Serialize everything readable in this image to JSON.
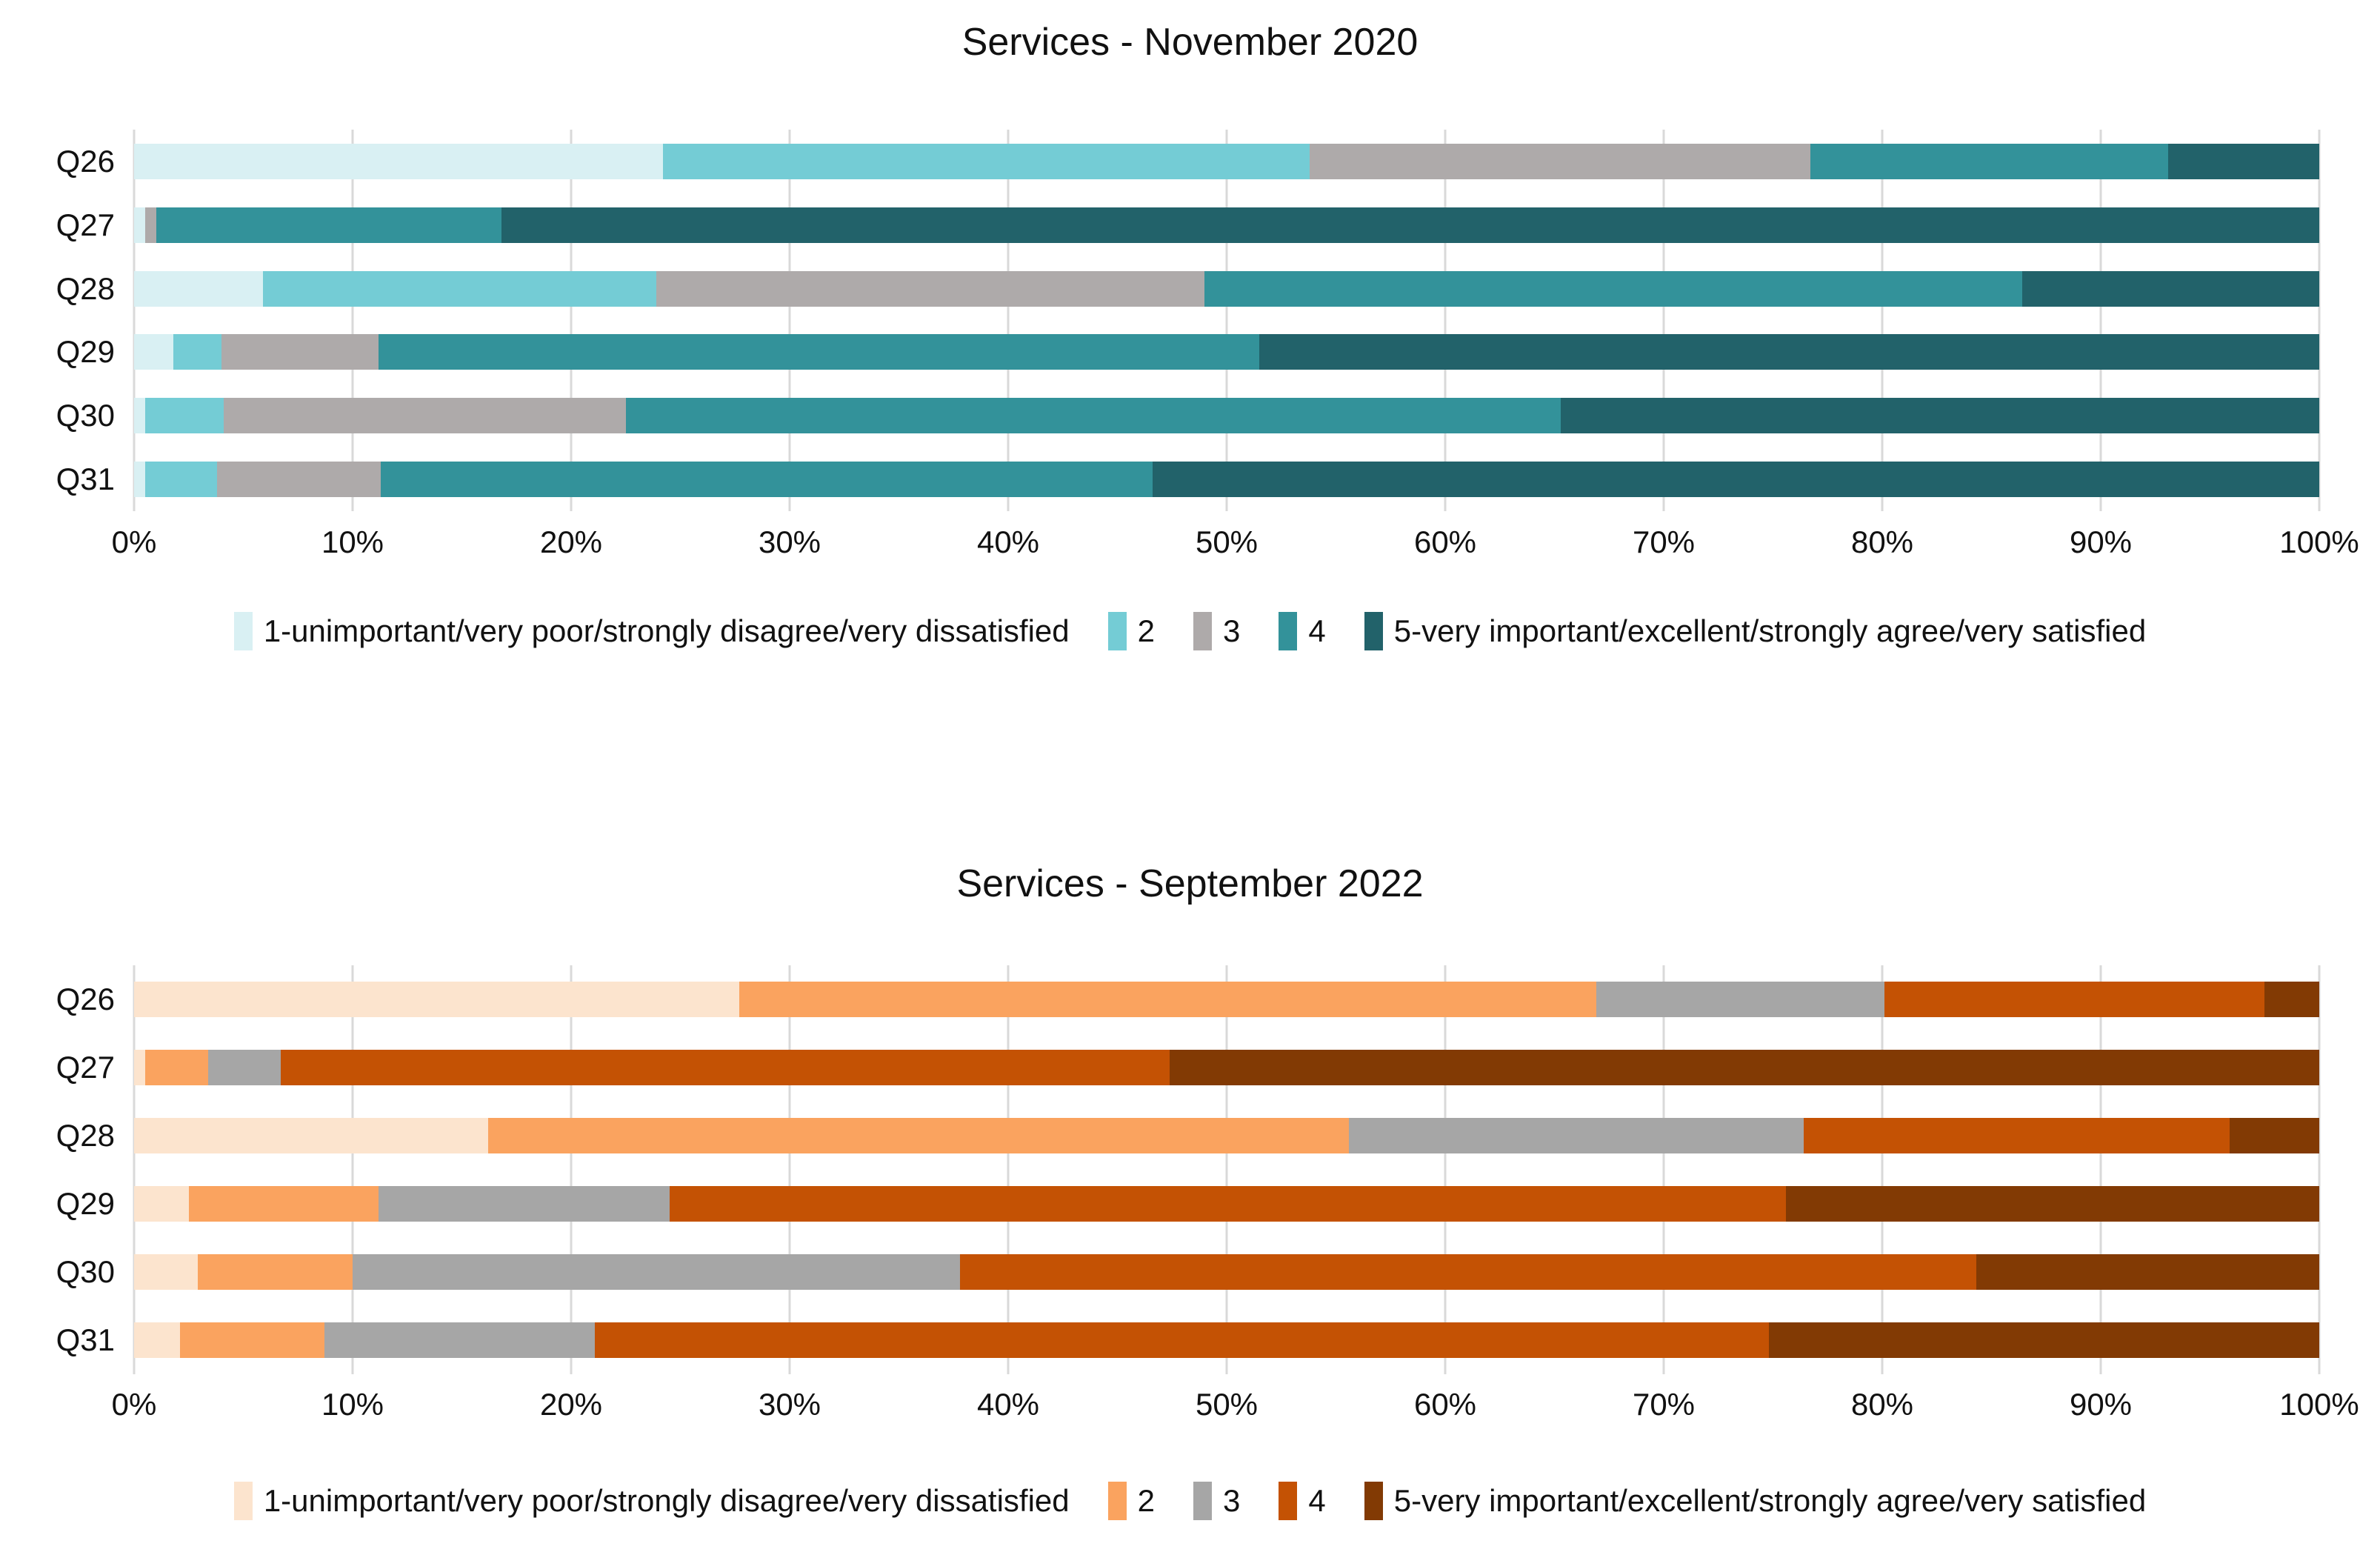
{
  "chart_data": [
    {
      "type": "bar",
      "orientation": "horizontal",
      "stacked": true,
      "title": "Services - November 2020",
      "categories": [
        "Q26",
        "Q27",
        "Q28",
        "Q29",
        "Q30",
        "Q31"
      ],
      "series": [
        {
          "name": "1-unimportant/very poor/strongly disagree/very dissatisfied",
          "color": "#D9F0F3",
          "values": [
            24.2,
            0.5,
            5.9,
            1.8,
            0.5,
            0.5
          ]
        },
        {
          "name": "2",
          "color": "#74CCD5",
          "values": [
            29.6,
            0,
            18.0,
            2.2,
            3.6,
            3.3
          ]
        },
        {
          "name": "3",
          "color": "#AEAAAA",
          "values": [
            22.9,
            0.5,
            25.1,
            7.2,
            18.4,
            7.5
          ]
        },
        {
          "name": "4",
          "color": "#33929A",
          "values": [
            16.4,
            15.8,
            37.4,
            40.3,
            42.8,
            35.3
          ]
        },
        {
          "name": "5-very important/excellent/strongly agree/very satisfied",
          "color": "#22626A",
          "values": [
            6.9,
            83.2,
            13.6,
            48.5,
            34.7,
            53.4
          ]
        }
      ],
      "x_ticks": [
        "0%",
        "10%",
        "20%",
        "30%",
        "40%",
        "50%",
        "60%",
        "70%",
        "80%",
        "90%",
        "100%"
      ],
      "xlim": [
        0,
        100
      ],
      "grid": true,
      "legend_position": "bottom"
    },
    {
      "type": "bar",
      "orientation": "horizontal",
      "stacked": true,
      "title": "Services - September 2022",
      "categories": [
        "Q26",
        "Q27",
        "Q28",
        "Q29",
        "Q30",
        "Q31"
      ],
      "series": [
        {
          "name": "1-unimportant/very poor/strongly disagree/very dissatisfied",
          "color": "#FCE4CE",
          "values": [
            27.7,
            0.5,
            16.2,
            2.5,
            2.9,
            2.1
          ]
        },
        {
          "name": "2",
          "color": "#FAA35F",
          "values": [
            39.2,
            2.9,
            39.4,
            8.7,
            7.1,
            6.6
          ]
        },
        {
          "name": "3",
          "color": "#A6A6A6",
          "values": [
            13.2,
            3.3,
            20.8,
            13.3,
            27.8,
            12.4
          ]
        },
        {
          "name": "4",
          "color": "#C45204",
          "values": [
            17.4,
            40.7,
            19.5,
            51.1,
            46.5,
            53.7
          ]
        },
        {
          "name": "5-very important/excellent/strongly agree/very satisfied",
          "color": "#823A04",
          "values": [
            2.5,
            52.6,
            4.1,
            24.4,
            15.7,
            25.2
          ]
        }
      ],
      "x_ticks": [
        "0%",
        "10%",
        "20%",
        "30%",
        "40%",
        "50%",
        "60%",
        "70%",
        "80%",
        "90%",
        "100%"
      ],
      "xlim": [
        0,
        100
      ],
      "grid": true,
      "legend_position": "bottom"
    }
  ]
}
